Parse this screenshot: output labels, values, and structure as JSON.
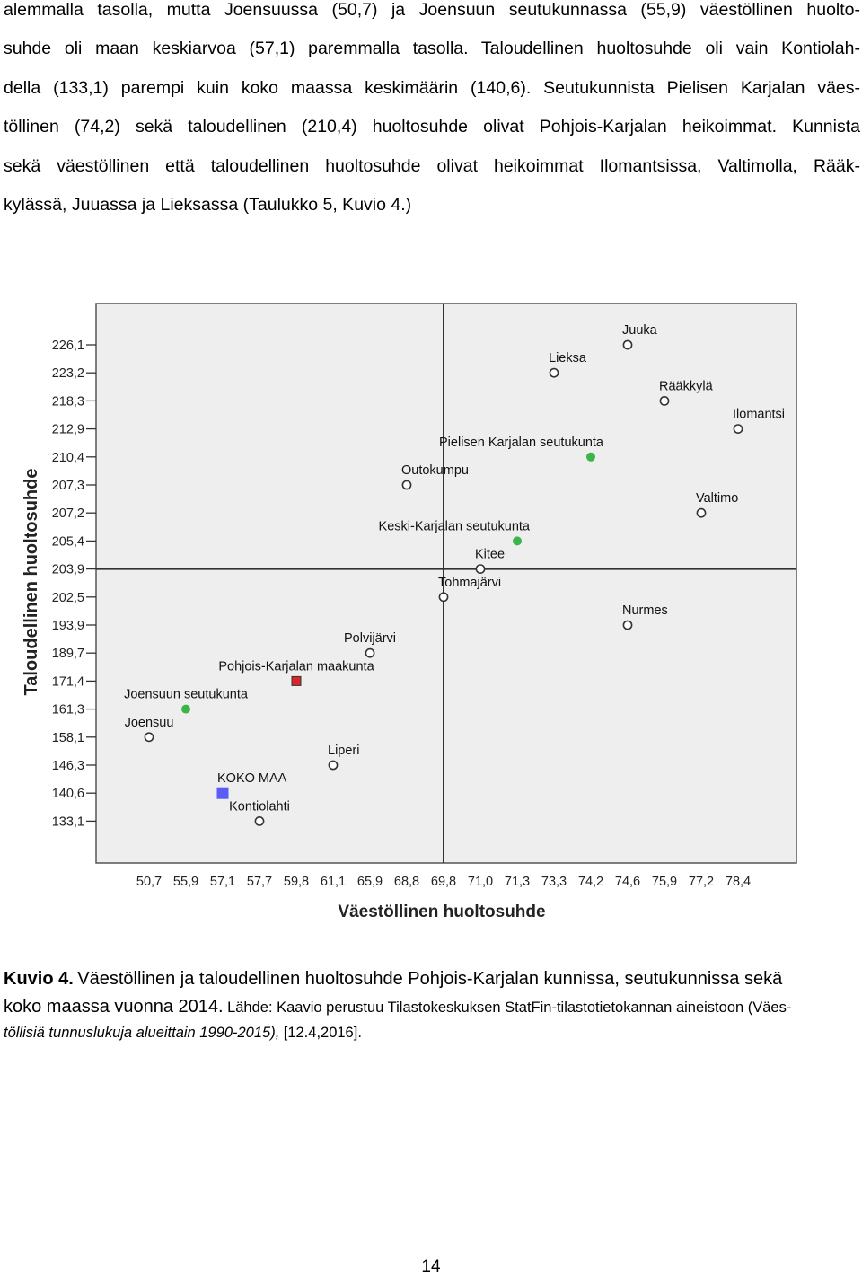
{
  "paragraph_lines": [
    "alemmalla tasolla, mutta Joensuussa (50,7) ja Joensuun seutukunnassa (55,9) väestöllinen huolto-",
    "suhde oli maan keskiarvoa (57,1) paremmalla tasolla. Taloudellinen huoltosuhde oli vain Kontiolah-",
    "della (133,1) parempi kuin koko maassa keskimäärin (140,6). Seutukunnista Pielisen Karjalan väes-",
    "töllinen (74,2) sekä taloudellinen (210,4) huoltosuhde olivat Pohjois-Karjalan heikoimmat. Kunnista",
    "sekä väestöllinen että taloudellinen huoltosuhde olivat heikoimmat Ilomantsissa, Valtimolla, Rääk-",
    "kylässä, Juuassa ja Lieksassa (Taulukko 5, Kuvio 4.)"
  ],
  "caption": {
    "label": "Kuvio 4.",
    "title_part1": "Väestöllinen ja taloudellinen huoltosuhde Pohjois-Karjalan kunnissa, seutukunnissa sekä",
    "title_part2": "koko maassa vuonna 2014.",
    "source_part1": "Lähde: Kaavio perustuu Tilastokeskuksen StatFin-tilastotietokannan aineistoon (Väes-",
    "source_part2": "töllisiä tunnuslukuja alueittain 1990-2015),",
    "source_part3": "[12.4,2016]."
  },
  "page_number": "14",
  "colors": {
    "plot_background": "#eeeeee",
    "seutukunta_marker": "#3ab54a",
    "maakunta_marker": "#d9252b",
    "koko_maa_marker": "#5b5bf5"
  },
  "chart_data": {
    "type": "scatter",
    "xlabel": "Väestöllinen huoltosuhde",
    "ylabel": "Taloudellinen huoltosuhde",
    "x_ticks": [
      "50,7",
      "55,9",
      "57,1",
      "57,7",
      "59,8",
      "61,1",
      "65,9",
      "68,8",
      "69,8",
      "71,0",
      "71,3",
      "73,3",
      "74,2",
      "74,6",
      "75,9",
      "77,2",
      "78,4"
    ],
    "y_ticks": [
      "226,1",
      "223,2",
      "218,3",
      "212,9",
      "210,4",
      "207,3",
      "207,2",
      "205,4",
      "203,9",
      "202,5",
      "193,9",
      "189,7",
      "171,4",
      "161,3",
      "158,1",
      "146,3",
      "140,6",
      "133,1"
    ],
    "axis_scale": "categorical (each distinct value one evenly spaced step)",
    "reference_lines": {
      "x": "69,8",
      "y": "203,9"
    },
    "grid": false,
    "points": [
      {
        "label": "Joensuu",
        "x": 50.7,
        "y": 158.1,
        "type": "kunta",
        "label_pos": "above"
      },
      {
        "label": "Joensuun seutukunta",
        "x": 55.9,
        "y": 161.3,
        "type": "seutukunta",
        "label_pos": "above"
      },
      {
        "label": "KOKO MAA",
        "x": 57.1,
        "y": 140.6,
        "type": "koko_maa",
        "label_pos": "above-right"
      },
      {
        "label": "Kontiolahti",
        "x": 57.7,
        "y": 133.1,
        "type": "kunta",
        "label_pos": "above"
      },
      {
        "label": "Pohjois-Karjalan maakunta",
        "x": 59.8,
        "y": 171.4,
        "type": "maakunta",
        "label_pos": "above"
      },
      {
        "label": "Liperi",
        "x": 61.1,
        "y": 146.3,
        "type": "kunta",
        "label_pos": "above-right"
      },
      {
        "label": "Polvijärvi",
        "x": 65.9,
        "y": 189.7,
        "type": "kunta",
        "label_pos": "above"
      },
      {
        "label": "Outokumpu",
        "x": 68.8,
        "y": 207.3,
        "type": "kunta",
        "label_pos": "above-right"
      },
      {
        "label": "Tohmajärvi",
        "x": 69.8,
        "y": 202.5,
        "type": "kunta",
        "label_pos": "above-right"
      },
      {
        "label": "Kitee",
        "x": 71.0,
        "y": 203.9,
        "type": "kunta",
        "label_pos": "above-right"
      },
      {
        "label": "Keski-Karjalan seutukunta",
        "x": 71.3,
        "y": 205.4,
        "type": "seutukunta",
        "label_pos": "above-left"
      },
      {
        "label": "Lieksa",
        "x": 73.3,
        "y": 223.2,
        "type": "kunta",
        "label_pos": "above-right"
      },
      {
        "label": "Pielisen Karjalan seutukunta",
        "x": 74.2,
        "y": 210.4,
        "type": "seutukunta",
        "label_pos": "above-left"
      },
      {
        "label": "Juuka",
        "x": 74.6,
        "y": 226.1,
        "type": "kunta",
        "label_pos": "above-right"
      },
      {
        "label": "Nurmes",
        "x": 74.6,
        "y": 193.9,
        "type": "kunta",
        "label_pos": "above-right"
      },
      {
        "label": "Rääkkylä",
        "x": 75.9,
        "y": 218.3,
        "type": "kunta",
        "label_pos": "above-right"
      },
      {
        "label": "Valtimo",
        "x": 77.2,
        "y": 207.2,
        "type": "kunta",
        "label_pos": "above-right"
      },
      {
        "label": "Ilomantsi",
        "x": 78.4,
        "y": 212.9,
        "type": "kunta",
        "label_pos": "above-right"
      }
    ]
  }
}
